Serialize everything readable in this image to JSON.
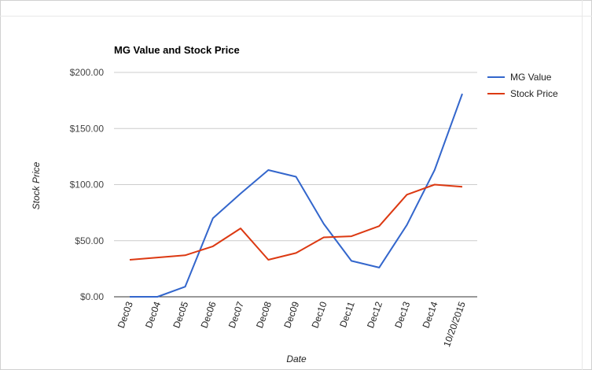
{
  "chart_data": {
    "type": "line",
    "title": "MG Value and Stock Price",
    "xlabel": "Date",
    "ylabel": "Stock Price",
    "categories": [
      "Dec03",
      "Dec04",
      "Dec05",
      "Dec06",
      "Dec07",
      "Dec08",
      "Dec09",
      "Dec10",
      "Dec11",
      "Dec12",
      "Dec13",
      "Dec14",
      "10/20/2015"
    ],
    "ylim": [
      0,
      200
    ],
    "yticks": [
      0,
      50,
      100,
      150,
      200
    ],
    "ytick_labels": [
      "$0.00",
      "$50.00",
      "$100.00",
      "$150.00",
      "$200.00"
    ],
    "grid": true,
    "legend": "right",
    "series": [
      {
        "name": "MG Value",
        "color": "#3366cc",
        "values": [
          0,
          0,
          9,
          70,
          92,
          113,
          107,
          65,
          32,
          26,
          64,
          113,
          181
        ]
      },
      {
        "name": "Stock Price",
        "color": "#dc3912",
        "values": [
          33,
          35,
          37,
          45,
          61,
          33,
          39,
          53,
          54,
          63,
          91,
          100,
          98
        ]
      }
    ]
  }
}
